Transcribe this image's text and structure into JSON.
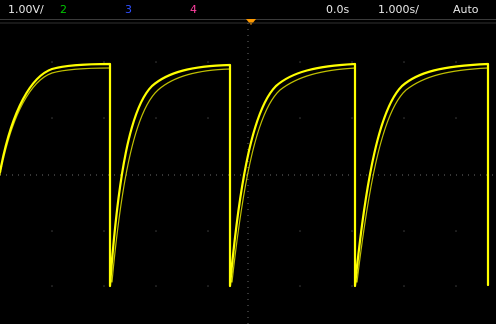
{
  "status_bar": {
    "ch1_scale": "1.00V/",
    "ch2_label": "2",
    "ch3_label": "3",
    "ch4_label": "4",
    "time_offset": "0.0s",
    "time_scale": "1.000s/",
    "trigger_mode": "Auto"
  },
  "colors": {
    "background": "#000000",
    "grid": "#5a5a5a",
    "channel_1": "#ffff00",
    "channel_2": "#00c000",
    "channel_3": "#2f4fff",
    "channel_4": "#ff3fa0",
    "trigger_marker": "#ff9a00"
  },
  "icons": {
    "trigger_position": "trigger-position-marker-icon"
  }
}
